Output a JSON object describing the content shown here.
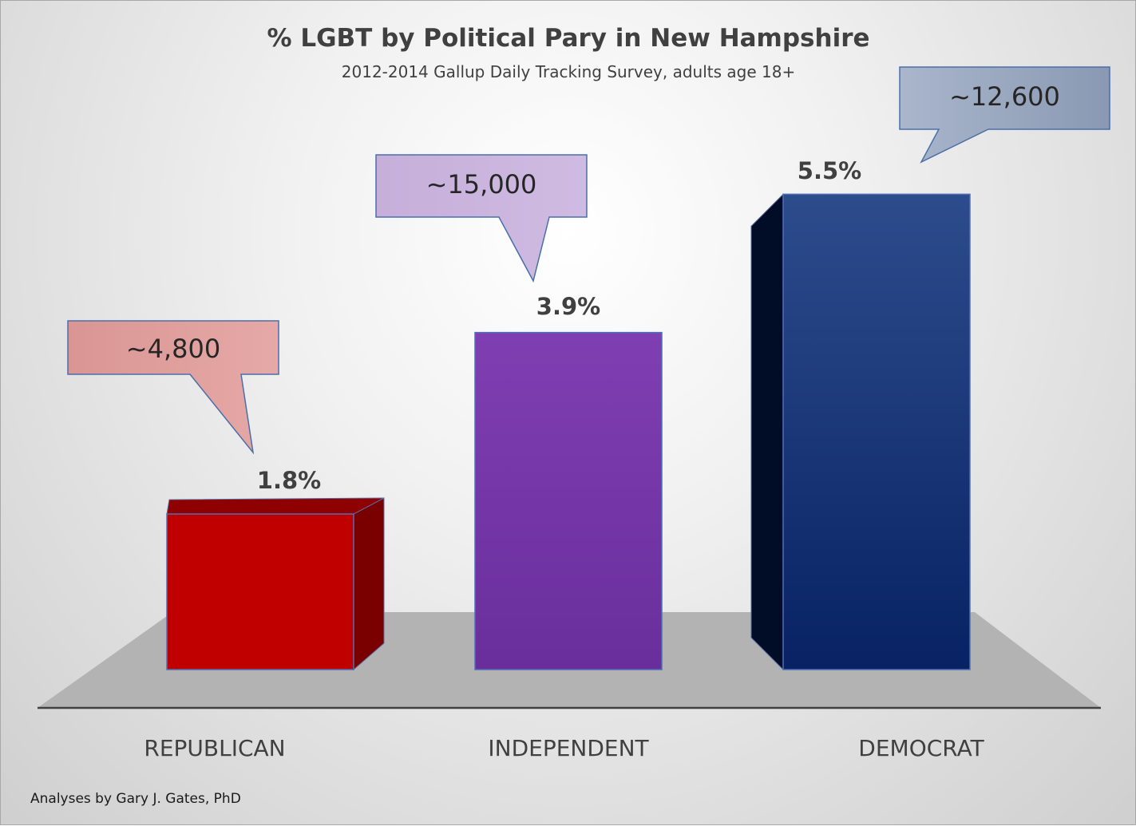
{
  "colors": {
    "republican": "#c00000",
    "independent": "#7030a0",
    "democrat": "#1f3a7a",
    "callout_republican": "#dd9a98",
    "callout_independent": "#c9b2dc",
    "callout_democrat": "#97a5bf",
    "floor": "#b3b3b3",
    "text": "#404040"
  },
  "chart_data": {
    "type": "bar",
    "title": "% LGBT by Political Pary in New Hampshire",
    "subtitle": "2012-2014 Gallup Daily Tracking Survey, adults age 18+",
    "categories": [
      "REPUBLICAN",
      "INDEPENDENT",
      "DEMOCRAT"
    ],
    "values": [
      1.8,
      3.9,
      5.5
    ],
    "value_labels": [
      "1.8%",
      "3.9%",
      "5.5%"
    ],
    "callouts": [
      "~4,800",
      "~15,000",
      "~12,600"
    ],
    "ylim": [
      0,
      6.5
    ],
    "grid": false,
    "legend": "none",
    "style": "3d-bars-on-floor"
  },
  "footer": {
    "note": "Analyses by Gary J. Gates, PhD"
  }
}
